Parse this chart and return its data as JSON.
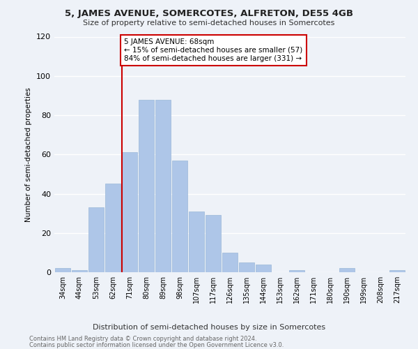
{
  "title": "5, JAMES AVENUE, SOMERCOTES, ALFRETON, DE55 4GB",
  "subtitle": "Size of property relative to semi-detached houses in Somercotes",
  "xlabel_bottom": "Distribution of semi-detached houses by size in Somercotes",
  "ylabel": "Number of semi-detached properties",
  "categories": [
    "34sqm",
    "44sqm",
    "53sqm",
    "62sqm",
    "71sqm",
    "80sqm",
    "89sqm",
    "98sqm",
    "107sqm",
    "117sqm",
    "126sqm",
    "135sqm",
    "144sqm",
    "153sqm",
    "162sqm",
    "171sqm",
    "180sqm",
    "190sqm",
    "199sqm",
    "208sqm",
    "217sqm"
  ],
  "values": [
    2,
    1,
    33,
    45,
    61,
    88,
    88,
    57,
    31,
    29,
    10,
    5,
    4,
    0,
    1,
    0,
    0,
    2,
    0,
    0,
    1
  ],
  "bar_color": "#aec6e8",
  "bar_edge_color": "#9ab8d8",
  "highlight_index": 4,
  "highlight_line_color": "#cc0000",
  "highlight_box_color": "#cc0000",
  "annotation_title": "5 JAMES AVENUE: 68sqm",
  "annotation_line1": "← 15% of semi-detached houses are smaller (57)",
  "annotation_line2": "84% of semi-detached houses are larger (331) →",
  "background_color": "#eef2f8",
  "grid_color": "#ffffff",
  "ylim": [
    0,
    120
  ],
  "yticks": [
    0,
    20,
    40,
    60,
    80,
    100,
    120
  ],
  "footer_line1": "Contains HM Land Registry data © Crown copyright and database right 2024.",
  "footer_line2": "Contains public sector information licensed under the Open Government Licence v3.0."
}
